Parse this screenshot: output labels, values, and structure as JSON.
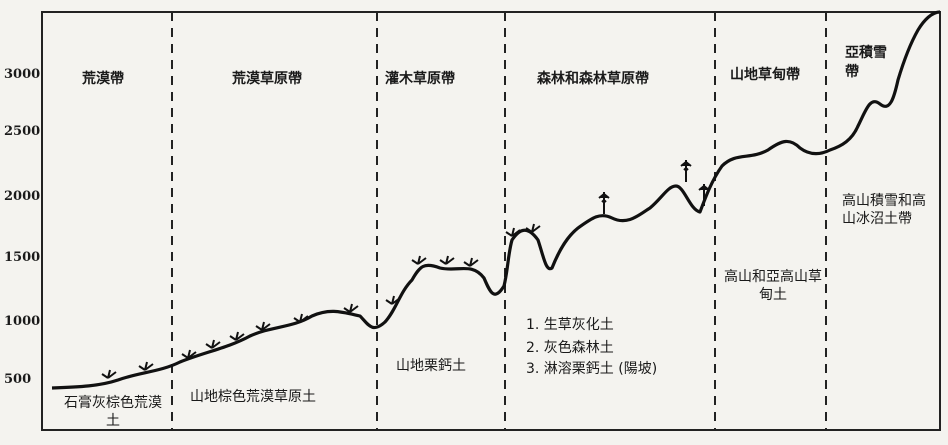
{
  "y_axis": {
    "ticks": [
      "3000",
      "2500",
      "2000",
      "1500",
      "1000",
      "500"
    ]
  },
  "zones": [
    "荒漠帶",
    "荒漠草原帶",
    "灌木草原帶",
    "森林和森林草原帶",
    "山地草甸帶",
    "亞積雪帶"
  ],
  "soils": [
    "石膏灰棕色荒漠土",
    "山地棕色荒漠草原土",
    "山地栗鈣土",
    "1. 生草灰化土",
    "2. 灰色森林土",
    "3. 淋溶栗鈣土 (陽坡)",
    "高山和亞高山草甸土",
    "高山積雪和高山冰沼土帶"
  ]
}
